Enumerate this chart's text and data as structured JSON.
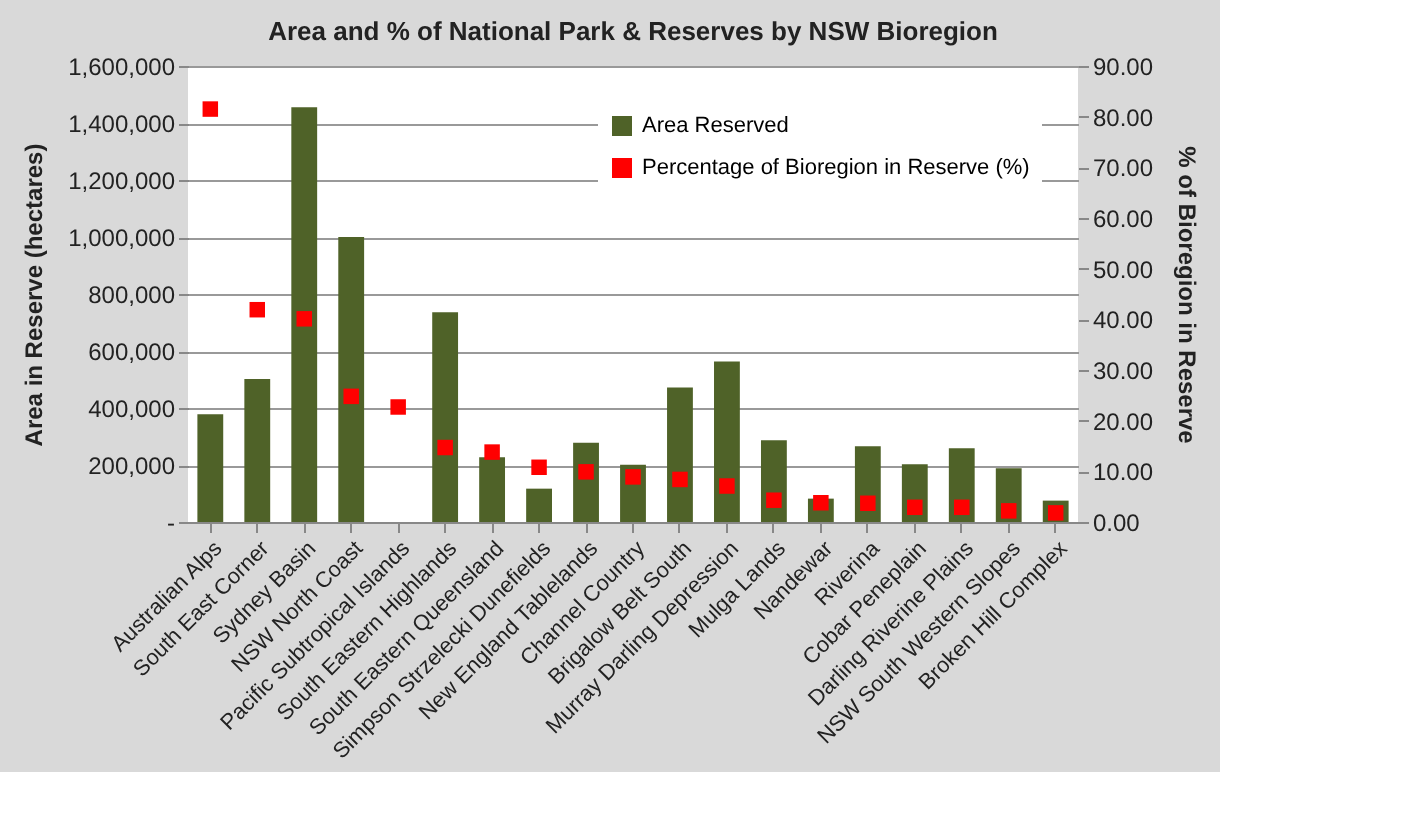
{
  "chart_data": {
    "type": "bar",
    "title": "Area and % of National Park & Reserves by NSW Bioregion",
    "categories": [
      "Australian Alps",
      "South East Corner",
      "Sydney Basin",
      "NSW North Coast",
      "Pacific Subtropical Islands",
      "South Eastern Highlands",
      "South Eastern Queensland",
      "Simpson Strzelecki Dunefields",
      "New England Tablelands",
      "Channel Country",
      "Brigalow Belt South",
      "Murray Darling Depression",
      "Mulga Lands",
      "Nandewar",
      "Riverina",
      "Cobar Peneplain",
      "Darling Riverine Plains",
      "NSW South Western Slopes",
      "Broken Hill Complex"
    ],
    "ylabel": "Area in Reserve (hectares)",
    "y2label": "% of Bioregion in Reserve",
    "series": [
      {
        "name": "Area Reserved",
        "color": "#4f6228",
        "values": [
          378000,
          502000,
          1455000,
          1000000,
          0,
          736000,
          227000,
          117000,
          278000,
          201000,
          472000,
          563000,
          287000,
          82000,
          266000,
          203000,
          259000,
          189000,
          75000
        ]
      },
      {
        "name": "Percentage of Bioregion in Reserve (%)",
        "type": "scatter",
        "axis": "y2",
        "marker": "square",
        "color": "#ff0000",
        "values": [
          81.5,
          41.9,
          40.1,
          24.8,
          22.7,
          14.7,
          13.8,
          10.8,
          9.9,
          8.9,
          8.4,
          7.1,
          4.3,
          3.8,
          3.7,
          2.9,
          2.9,
          2.2,
          1.8
        ]
      }
    ],
    "ylim": [
      0,
      1600000
    ],
    "yticks": [
      {
        "value": 0,
        "label": "-"
      },
      {
        "value": 200000,
        "label": "200,000"
      },
      {
        "value": 400000,
        "label": "400,000"
      },
      {
        "value": 600000,
        "label": "600,000"
      },
      {
        "value": 800000,
        "label": "800,000"
      },
      {
        "value": 1000000,
        "label": "1,000,000"
      },
      {
        "value": 1200000,
        "label": "1,200,000"
      },
      {
        "value": 1400000,
        "label": "1,400,000"
      },
      {
        "value": 1600000,
        "label": "1,600,000"
      }
    ],
    "y2lim": [
      0,
      90
    ],
    "y2ticks": [
      {
        "value": 0,
        "label": "0.00"
      },
      {
        "value": 10,
        "label": "10.00"
      },
      {
        "value": 20,
        "label": "20.00"
      },
      {
        "value": 30,
        "label": "30.00"
      },
      {
        "value": 40,
        "label": "40.00"
      },
      {
        "value": 50,
        "label": "50.00"
      },
      {
        "value": 60,
        "label": "60.00"
      },
      {
        "value": 70,
        "label": "70.00"
      },
      {
        "value": 80,
        "label": "80.00"
      },
      {
        "value": 90,
        "label": "90.00"
      }
    ],
    "grid": "y",
    "legend": "top right"
  }
}
